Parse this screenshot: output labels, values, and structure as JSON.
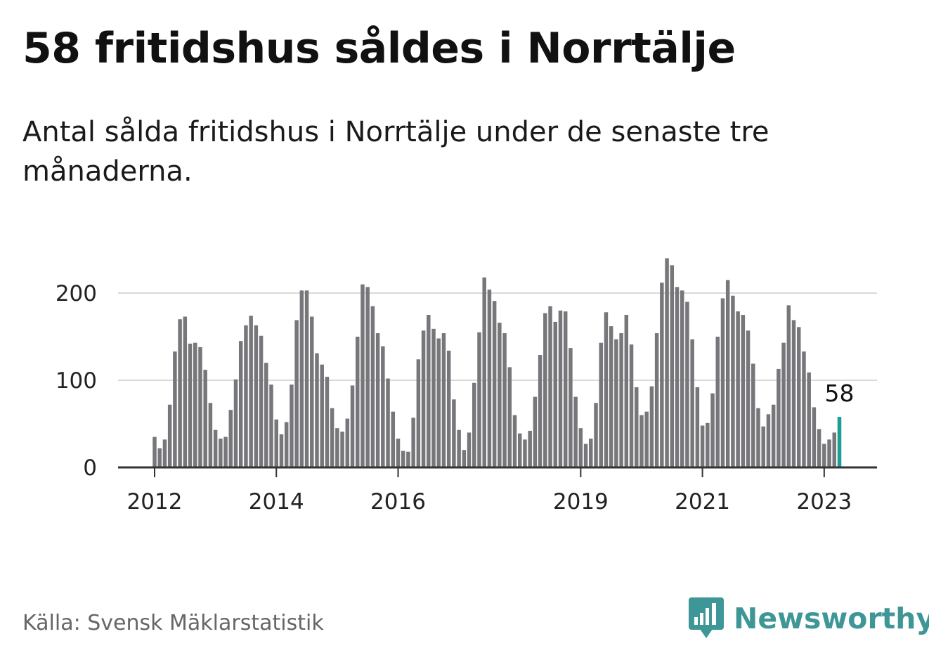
{
  "header": {
    "title": "58 fritidshus såldes i Norrtälje",
    "subtitle": "Antal sålda fritidshus i Norrtälje under de senaste tre månaderna."
  },
  "footer": {
    "source": "Källa: Svensk Mäklarstatistik",
    "brand": "Newsworthy",
    "brand_icon": "bar-chart-speech-bubble-icon"
  },
  "colors": {
    "bar": "#77777b",
    "highlight": "#1a9e96",
    "grid": "#d9d9d9",
    "axis": "#333333",
    "brand": "#3f9696"
  },
  "chart_data": {
    "type": "bar",
    "title": "58 fritidshus såldes i Norrtälje",
    "subtitle": "Antal sålda fritidshus i Norrtälje under de senaste tre månaderna.",
    "xlabel": "",
    "ylabel": "",
    "ylim": [
      0,
      240
    ],
    "yticks": [
      0,
      100,
      200
    ],
    "grid": true,
    "legend": "none",
    "start_month": "2012-01",
    "x_ticks": [
      "2012",
      "2014",
      "2016",
      "2019",
      "2021",
      "2023"
    ],
    "series": [
      {
        "values": [
          35,
          22,
          32,
          72,
          133,
          170,
          173,
          142,
          143,
          138,
          112,
          74,
          43,
          33,
          35,
          66,
          101,
          145,
          163,
          174,
          163,
          151,
          120,
          95,
          55,
          38,
          52,
          95,
          169,
          203,
          203,
          173,
          131,
          118,
          104,
          68,
          45,
          41,
          56,
          94,
          150,
          210,
          207,
          185,
          154,
          139,
          102,
          64,
          33,
          19,
          18,
          57,
          124,
          157,
          175,
          159,
          148,
          154,
          134,
          78,
          43,
          20,
          40,
          97,
          155,
          218,
          204,
          191,
          166,
          154,
          115,
          60,
          39,
          32,
          42,
          81,
          129,
          177,
          185,
          167,
          180,
          179,
          137,
          81,
          45,
          27,
          33,
          74,
          143,
          178,
          162,
          147,
          154,
          175,
          141,
          92,
          60,
          64,
          93,
          154,
          212,
          240,
          232,
          207,
          203,
          190,
          147,
          92,
          48,
          51,
          85,
          150,
          194,
          215,
          197,
          179,
          175,
          157,
          119,
          68,
          47,
          61,
          72,
          113,
          143,
          186,
          169,
          161,
          133,
          109,
          69,
          44,
          27,
          32,
          40,
          58
        ]
      }
    ],
    "annotations": [
      {
        "text": "58",
        "index": 135,
        "value": 58
      }
    ]
  }
}
